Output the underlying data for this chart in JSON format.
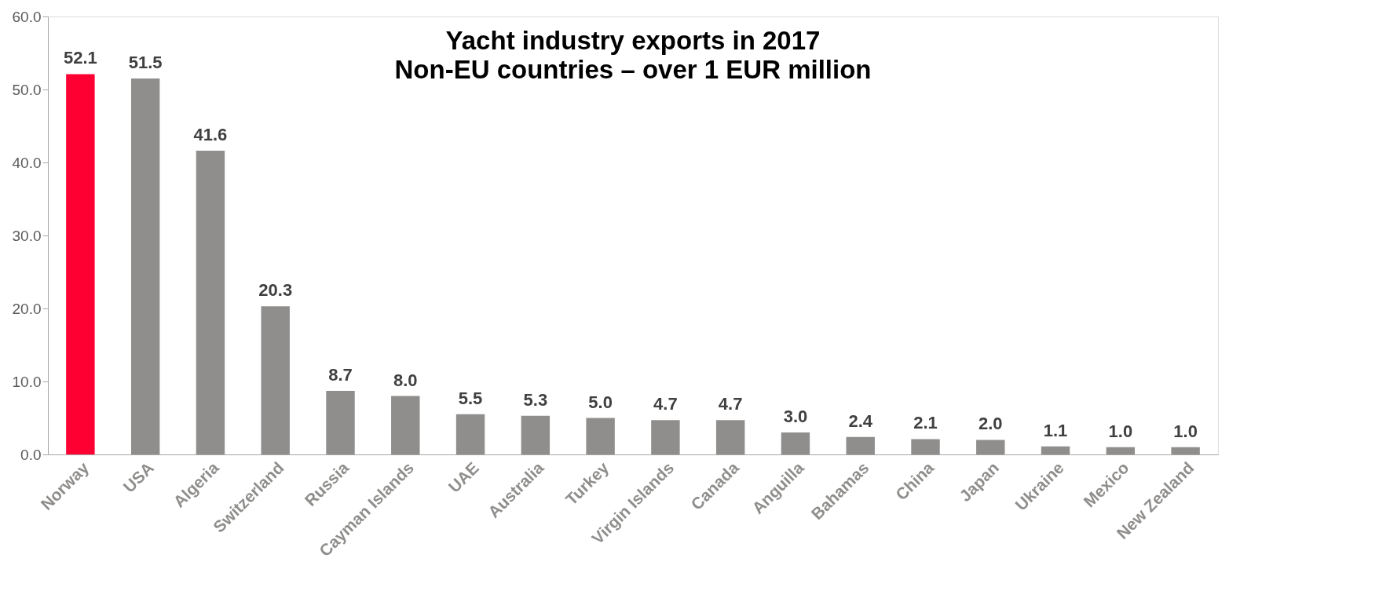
{
  "chart_data": {
    "type": "bar",
    "title": "Yacht industry exports in 2017",
    "subtitle": "Non-EU countries – over 1 EUR million",
    "categories": [
      "Norway",
      "USA",
      "Algeria",
      "Switzerland",
      "Russia",
      "Cayman Islands",
      "UAE",
      "Australia",
      "Turkey",
      "Virgin Islands",
      "Canada",
      "Anguilla",
      "Bahamas",
      "China",
      "Japan",
      "Ukraine",
      "Mexico",
      "New Zealand"
    ],
    "values": [
      52.1,
      51.5,
      41.6,
      20.3,
      8.7,
      8.0,
      5.5,
      5.3,
      5.0,
      4.7,
      4.7,
      3.0,
      2.4,
      2.1,
      2.0,
      1.1,
      1.0,
      1.0
    ],
    "colors": [
      "#ff0033",
      "#8f8e8c",
      "#8f8e8c",
      "#8f8e8c",
      "#8f8e8c",
      "#8f8e8c",
      "#8f8e8c",
      "#8f8e8c",
      "#8f8e8c",
      "#8f8e8c",
      "#8f8e8c",
      "#8f8e8c",
      "#8f8e8c",
      "#8f8e8c",
      "#8f8e8c",
      "#8f8e8c",
      "#8f8e8c",
      "#8f8e8c"
    ],
    "ylim": [
      0,
      60
    ],
    "yticks": [
      {
        "value": 0,
        "label": "0.0"
      },
      {
        "value": 10,
        "label": "10.0"
      },
      {
        "value": 20,
        "label": "20.0"
      },
      {
        "value": 30,
        "label": "30.0"
      },
      {
        "value": 40,
        "label": "40.0"
      },
      {
        "value": 50,
        "label": "50.0"
      },
      {
        "value": 60,
        "label": "60.0"
      }
    ],
    "value_labels": [
      "52.1",
      "51.5",
      "41.6",
      "20.3",
      "8.7",
      "8.0",
      "5.5",
      "5.3",
      "5.0",
      "4.7",
      "4.7",
      "3.0",
      "2.4",
      "2.1",
      "2.0",
      "1.1",
      "1.0",
      "1.0"
    ],
    "grid": false
  }
}
